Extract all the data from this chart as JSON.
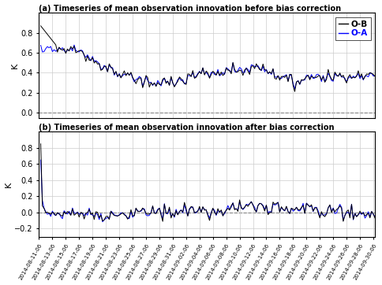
{
  "title_a": "(a) Timeseries of mean observation innovation before bias correction",
  "title_b": "(b) Timeseries of mean observation innovation after bias correction",
  "ylabel": "K",
  "legend_ob": "O-B",
  "legend_oa": "O-A",
  "color_ob": "black",
  "color_oa": "blue",
  "color_zero": "black",
  "ylim_a": [
    -0.05,
    1.0
  ],
  "ylim_b": [
    -0.3,
    1.0
  ],
  "yticks_a": [
    0.0,
    0.2,
    0.4,
    0.6,
    0.8
  ],
  "yticks_b": [
    -0.2,
    0.0,
    0.2,
    0.4,
    0.6,
    0.8
  ],
  "figsize": [
    4.84,
    3.62
  ],
  "dpi": 100,
  "tick_dates": [
    "2014-08-11",
    "2014-08-13",
    "2014-08-15",
    "2014-08-17",
    "2014-08-19",
    "2014-08-21",
    "2014-08-23",
    "2014-08-25",
    "2014-08-27",
    "2014-08-29",
    "2014-08-31",
    "2014-09-02",
    "2014-09-04",
    "2014-09-06",
    "2014-09-08",
    "2014-09-10",
    "2014-09-12",
    "2014-09-14",
    "2014-09-16",
    "2014-09-18",
    "2014-09-20",
    "2014-09-22",
    "2014-09-24",
    "2014-09-26",
    "2014-09-28",
    "2014-09-30"
  ],
  "tick_labels": [
    "2014-08-11-06",
    "2014-08-13-06",
    "2014-08-15-06",
    "2014-08-17-06",
    "2014-08-19-06",
    "2014-08-21-06",
    "2014-08-23-06",
    "2014-08-25-06",
    "2014-08-27-06",
    "2014-08-29-06",
    "2014-08-31-06",
    "2014-09-02-06",
    "2014-09-04-06",
    "2014-09-06-06",
    "2014-09-08-06",
    "2014-09-10-06",
    "2014-09-12-06",
    "2014-09-14-06",
    "2014-09-16-06",
    "2014-09-18-06",
    "2014-09-20-06",
    "2014-09-22-06",
    "2014-09-24-06",
    "2014-09-26-06",
    "2014-09-28-06",
    "2014-09-30-06"
  ],
  "background_color": "white",
  "grid_color": "#cccccc"
}
